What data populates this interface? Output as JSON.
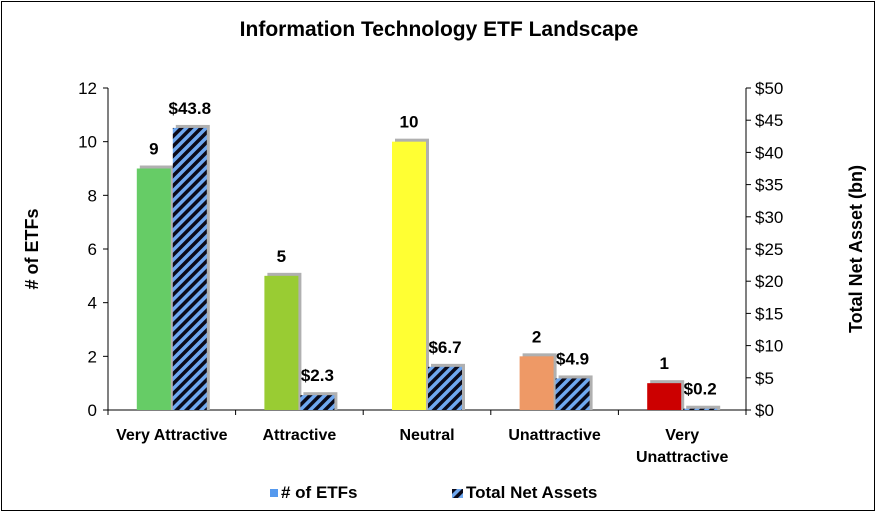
{
  "chart_data": {
    "type": "bar",
    "title": "Information Technology  ETF Landscape",
    "categories": [
      [
        "Very Attractive"
      ],
      [
        "Attractive"
      ],
      [
        "Neutral"
      ],
      [
        "Unattractive"
      ],
      [
        "Very",
        "Unattractive"
      ]
    ],
    "series": [
      {
        "name": "# of ETFs",
        "axis": "left",
        "values": [
          9,
          5,
          10,
          2,
          1
        ],
        "labels": [
          "9",
          "5",
          "10",
          "2",
          "1"
        ],
        "colors": [
          "#66cc66",
          "#99cc33",
          "#ffff33",
          "#ee9966",
          "#cc0000"
        ],
        "legend_color": "#5599ee"
      },
      {
        "name": "Total Net Assets",
        "axis": "right",
        "values": [
          43.8,
          2.3,
          6.7,
          4.9,
          0.2
        ],
        "labels": [
          "$43.8",
          "$2.3",
          "$6.7",
          "$4.9",
          "$0.2"
        ],
        "fill_color": "#6fa8f0",
        "stripe_color": "#0a0a1a",
        "pattern": "diagonal-stripes"
      }
    ],
    "ylabel": "# of ETFs",
    "ylabel_right": "Total Net Asset (bn)",
    "ylim": [
      0,
      12
    ],
    "ylim_right": [
      0,
      50
    ],
    "yticks": [
      0,
      2,
      4,
      6,
      8,
      10,
      12
    ],
    "yticks_right": [
      "$0",
      "$5",
      "$10",
      "$15",
      "$20",
      "$25",
      "$30",
      "$35",
      "$40",
      "$45",
      "$50"
    ],
    "grid": false,
    "legend_position": "bottom"
  }
}
